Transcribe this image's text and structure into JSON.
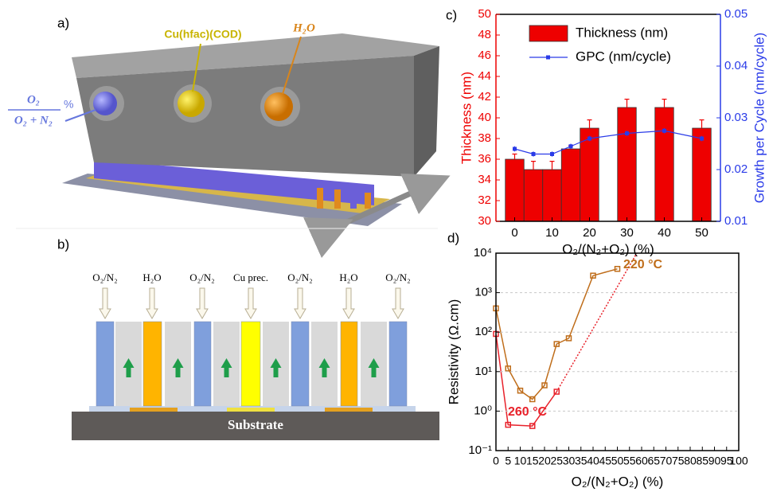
{
  "panel_labels": [
    "a)",
    "b)",
    "c)",
    "d)"
  ],
  "diagram_a": {
    "precursor": "Cu(hfac)(COD)",
    "water": "H₂O",
    "ratio": {
      "numerator": "O₂",
      "denominator": "O₂ + N₂",
      "unit": "%"
    }
  },
  "diagram_b": {
    "inlets": [
      "O₂/N₂",
      "H₂O",
      "O₂/N₂",
      "Cu prec.",
      "O₂/N₂",
      "H₂O",
      "O₂/N₂"
    ],
    "substrate": "Substrate"
  },
  "chart_data": [
    {
      "type": "bar",
      "xlabel": "O₂/(N₂+O₂) (%)",
      "ylabel": "Thickness (nm)",
      "y2label": "Growth per Cycle (nm/cycle)",
      "x": [
        0,
        5,
        10,
        15,
        20,
        30,
        40,
        50
      ],
      "series": [
        {
          "name": "Thickness (nm)",
          "color": "#ee0000",
          "values": [
            36,
            35,
            35,
            37,
            39,
            41,
            41,
            39
          ],
          "errors": [
            0.5,
            0.8,
            0.8,
            0.3,
            0.8,
            0.8,
            0.8,
            0.8
          ]
        },
        {
          "name": "GPC (nm/cycle)",
          "color": "#2a3be8",
          "axis": "y2",
          "values": [
            0.024,
            0.023,
            0.023,
            0.0245,
            0.026,
            0.027,
            0.0275,
            0.026
          ],
          "errors": [
            0.0005,
            0.0005,
            0.0005,
            0.0005,
            0.0005,
            0.0005,
            0.0005,
            0.0005
          ]
        }
      ],
      "xlim": [
        -5,
        55
      ],
      "xticks": [
        0,
        10,
        20,
        30,
        40,
        50
      ],
      "ylim": [
        30,
        50
      ],
      "yticks": [
        30,
        32,
        34,
        36,
        38,
        40,
        42,
        44,
        46,
        48,
        50
      ],
      "y2lim": [
        0.01,
        0.05
      ],
      "y2ticks": [
        0.01,
        0.02,
        0.03,
        0.04,
        0.05
      ],
      "legend": "upper left"
    },
    {
      "type": "line",
      "xlabel": "O₂/(N₂+O₂) (%)",
      "ylabel": "Resistivity (Ω.cm)",
      "log": true,
      "grid": true,
      "series": [
        {
          "name": "220 °C",
          "color": "#bf6d1a",
          "x": [
            0,
            5,
            10,
            15,
            20,
            25,
            30,
            40,
            50
          ],
          "values": [
            400,
            12,
            3.3,
            2,
            4.5,
            50,
            70,
            2700,
            4000
          ]
        },
        {
          "name": "260 °C",
          "color": "#e8222b",
          "x": [
            0,
            5,
            15,
            25
          ],
          "values": [
            90,
            0.45,
            0.42,
            3.1
          ]
        },
        {
          "color": "#e8222b",
          "dotted": true,
          "x": [
            25,
            58
          ],
          "values": [
            3.1,
            10000
          ]
        }
      ],
      "xlim": [
        0,
        100
      ],
      "xticks": [
        0,
        5,
        10,
        15,
        20,
        25,
        30,
        35,
        40,
        45,
        50,
        55,
        60,
        65,
        70,
        75,
        80,
        85,
        90,
        95,
        100
      ],
      "ylim": [
        0.1,
        10000
      ],
      "yticks": [
        {
          "value": 0.1,
          "label": "10⁻¹"
        },
        {
          "value": 1,
          "label": "10⁰"
        },
        {
          "value": 10,
          "label": "10¹"
        },
        {
          "value": 100,
          "label": "10²"
        },
        {
          "value": 1000,
          "label": "10³"
        },
        {
          "value": 10000,
          "label": "10⁴"
        }
      ]
    }
  ]
}
